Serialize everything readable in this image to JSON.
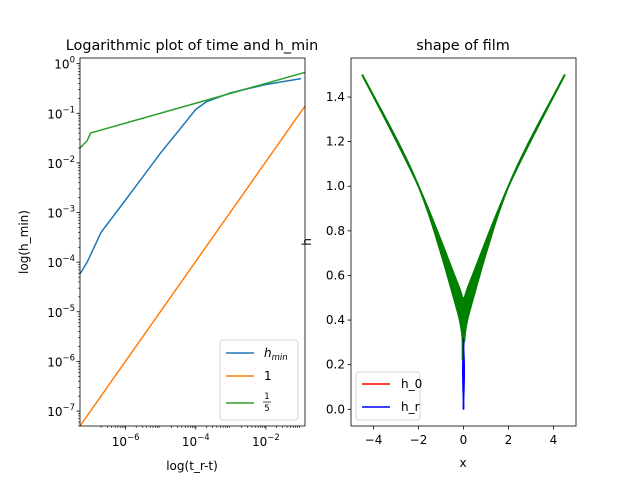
{
  "chart_data": [
    {
      "type": "line",
      "title": "Logarithmic plot of time and h_min",
      "xlabel": "log(t_r-t)",
      "ylabel": "log(h_min)",
      "xscale": "log",
      "yscale": "log",
      "xlim": [
        5e-08,
        0.13
      ],
      "ylim": [
        5e-08,
        1.3
      ],
      "x_ticks": [
        {
          "value": 1e-06,
          "mant": "10",
          "exp": "−6"
        },
        {
          "value": 0.0001,
          "mant": "10",
          "exp": "−4"
        },
        {
          "value": 0.01,
          "mant": "10",
          "exp": "−2"
        }
      ],
      "y_ticks": [
        {
          "value": 1e-07,
          "mant": "10",
          "exp": "−7"
        },
        {
          "value": 1e-06,
          "mant": "10",
          "exp": "−6"
        },
        {
          "value": 1e-05,
          "mant": "10",
          "exp": "−5"
        },
        {
          "value": 0.0001,
          "mant": "10",
          "exp": "−4"
        },
        {
          "value": 0.001,
          "mant": "10",
          "exp": "−3"
        },
        {
          "value": 0.01,
          "mant": "10",
          "exp": "−2"
        },
        {
          "value": 0.1,
          "mant": "10",
          "exp": "−1"
        },
        {
          "value": 1,
          "mant": "10",
          "exp": "0"
        }
      ],
      "legend_position": "lower right",
      "series": [
        {
          "name": "h_min",
          "legend": {
            "base": "h",
            "sub": "min"
          },
          "color": "#1f77b4",
          "points": [
            [
              5e-08,
              5.8e-05
            ],
            [
              8e-08,
              0.0001
            ],
            [
              2e-07,
              0.0004
            ],
            [
              1e-06,
              0.0018
            ],
            [
              1e-05,
              0.016
            ],
            [
              5e-05,
              0.065
            ],
            [
              0.0001,
              0.12
            ],
            [
              0.0002,
              0.17
            ],
            [
              0.001,
              0.26
            ],
            [
              0.01,
              0.38
            ],
            [
              0.1,
              0.5
            ]
          ]
        },
        {
          "name": "1",
          "legend": {
            "text": "1"
          },
          "color": "#ff7f0e",
          "points": [
            [
              5e-08,
              5e-08
            ],
            [
              0.13,
              0.14
            ]
          ]
        },
        {
          "name": "1/5",
          "legend": {
            "num": "1",
            "den": "5"
          },
          "color": "#2ca02c",
          "points": [
            [
              5e-08,
              0.02
            ],
            [
              8e-08,
              0.028
            ],
            [
              1e-07,
              0.04
            ],
            [
              0.13,
              0.67
            ]
          ]
        }
      ]
    },
    {
      "type": "line",
      "title": "shape of film",
      "xlabel": "x",
      "ylabel": "h",
      "xlim": [
        -5,
        5
      ],
      "ylim": [
        -0.075,
        1.575
      ],
      "x_ticks": [
        {
          "value": -4,
          "label": "−4"
        },
        {
          "value": -2,
          "label": "−2"
        },
        {
          "value": 0,
          "label": "0"
        },
        {
          "value": 2,
          "label": "2"
        },
        {
          "value": 4,
          "label": "4"
        }
      ],
      "y_ticks": [
        {
          "value": 0.0,
          "label": "0.0"
        },
        {
          "value": 0.2,
          "label": "0.2"
        },
        {
          "value": 0.4,
          "label": "0.4"
        },
        {
          "value": 0.6,
          "label": "0.6"
        },
        {
          "value": 0.8,
          "label": "0.8"
        },
        {
          "value": 1.0,
          "label": "1.0"
        },
        {
          "value": 1.2,
          "label": "1.2"
        },
        {
          "value": 1.4,
          "label": "1.4"
        }
      ],
      "legend_position": "lower left",
      "series": [
        {
          "name": "h_0",
          "color": "#ff0000",
          "points": [
            [
              -4.5,
              1.5
            ],
            [
              -2,
              1.0
            ],
            [
              0,
              0.5
            ],
            [
              2,
              1.0
            ],
            [
              4.5,
              1.5
            ]
          ]
        },
        {
          "name": "h_r",
          "color": "#0000ff",
          "points": [
            [
              -4.5,
              1.5
            ],
            [
              -2,
              1.0
            ],
            [
              -0.15,
              0.4
            ],
            [
              0,
              0.0
            ],
            [
              0.15,
              0.4
            ],
            [
              2,
              1.0
            ],
            [
              4.5,
              1.5
            ]
          ]
        },
        {
          "name": "",
          "color": "#008000",
          "note_band": true,
          "points": [
            [
              -4.5,
              1.5
            ],
            [
              -2,
              1.0
            ],
            [
              -0.3,
              0.45
            ],
            [
              0,
              0.3
            ],
            [
              0.3,
              0.45
            ],
            [
              2,
              1.0
            ],
            [
              4.5,
              1.5
            ]
          ]
        }
      ],
      "legend": [
        "h_0",
        "h_r"
      ]
    }
  ]
}
